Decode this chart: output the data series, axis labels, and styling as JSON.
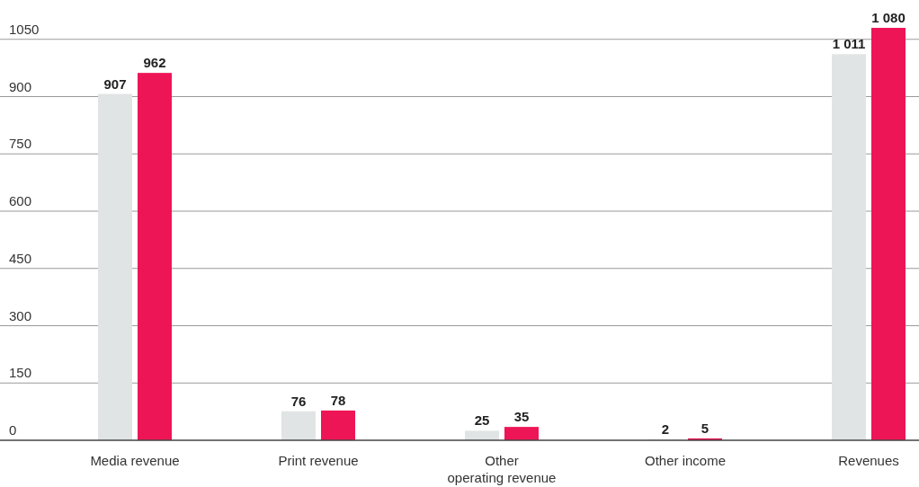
{
  "chart_data": {
    "type": "bar",
    "categories": [
      "Media revenue",
      "Print revenue",
      "Other operating revenue",
      "Other income",
      "Revenues"
    ],
    "series": [
      {
        "color": "#e1e4e4",
        "values": [
          907,
          76,
          25,
          2,
          1011
        ],
        "value_labels": [
          "907",
          "76",
          "25",
          "2",
          "1 011"
        ]
      },
      {
        "color": "#ee1556",
        "values": [
          962,
          78,
          35,
          5,
          1080
        ],
        "value_labels": [
          "962",
          "78",
          "35",
          "5",
          "1 080"
        ]
      }
    ],
    "ylim": [
      0,
      1080
    ],
    "yticks": [
      0,
      150,
      300,
      450,
      600,
      750,
      900,
      1050
    ],
    "grid": "y"
  }
}
